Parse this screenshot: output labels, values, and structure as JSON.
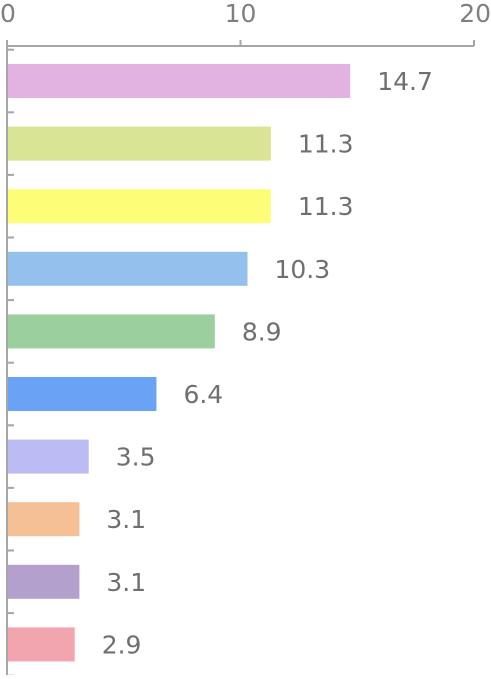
{
  "chart_data": {
    "type": "bar",
    "orientation": "horizontal",
    "xlim": [
      0,
      20
    ],
    "x_ticks": [
      0,
      10,
      20
    ],
    "x_tick_labels": [
      "0",
      "10",
      "20"
    ],
    "x_axis_position": "top",
    "grid": false,
    "legend": "none",
    "values": [
      14.7,
      11.3,
      11.3,
      10.3,
      8.9,
      6.4,
      3.5,
      3.1,
      3.1,
      2.9
    ],
    "value_labels": [
      "14.7",
      "11.3",
      "11.3",
      "10.3",
      "8.9",
      "6.4",
      "3.5",
      "3.1",
      "3.1",
      "2.9"
    ],
    "colors": [
      "#e2b2e0",
      "#d9e494",
      "#fdfd78",
      "#94c0ee",
      "#9ccf9e",
      "#6aa2f6",
      "#bdbbf4",
      "#f6c096",
      "#b3a0cc",
      "#f2a4af"
    ],
    "axis_color": "#a6a6a6"
  }
}
